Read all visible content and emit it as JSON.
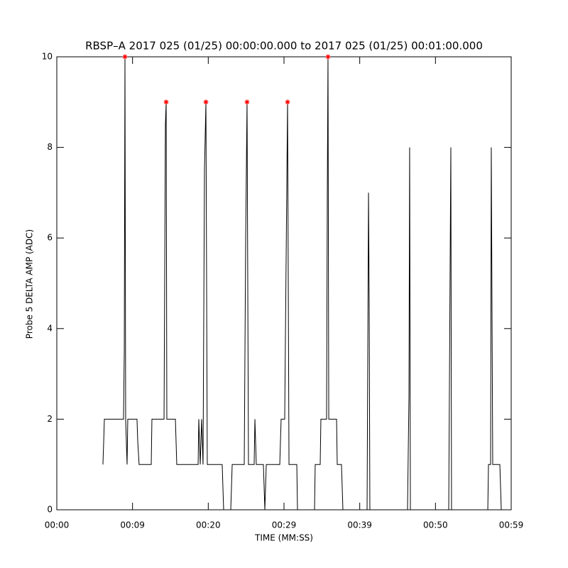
{
  "chart_data": {
    "type": "line",
    "title": "RBSP–A 2017 025 (01/25) 00:00:00.000 to 2017 025 (01/25) 00:01:00.000",
    "xlabel": "TIME (MM:SS)",
    "ylabel": "Probe 5 DELTA AMP (ADC)",
    "xlim": [
      0,
      60
    ],
    "xticks": [
      {
        "value": 0,
        "label": "00:00"
      },
      {
        "value": 10,
        "label": "00:09"
      },
      {
        "value": 20,
        "label": "00:20"
      },
      {
        "value": 30,
        "label": "00:29"
      },
      {
        "value": 40,
        "label": "00:39"
      },
      {
        "value": 50,
        "label": "00:50"
      },
      {
        "value": 60,
        "label": "00:59"
      }
    ],
    "ylim": [
      0,
      10
    ],
    "yticks": [
      0,
      2,
      4,
      6,
      8,
      10
    ],
    "series": [
      {
        "color": "#000000",
        "x": [
          6.09,
          6.19,
          6.28,
          8.81,
          8.91,
          9.0,
          9.09,
          9.28,
          9.37,
          10.59,
          10.69,
          10.87,
          12.47,
          12.56,
          14.16,
          14.34,
          14.44,
          14.53,
          15.66,
          15.84,
          18.66,
          18.75,
          18.94,
          19.12,
          19.31,
          19.5,
          19.69,
          19.87,
          21.84,
          22.03,
          22.97,
          23.16,
          24.75,
          24.94,
          25.12,
          25.31,
          26.06,
          26.16,
          26.34,
          27.28,
          27.47,
          27.66,
          29.44,
          29.62,
          30.09,
          30.28,
          30.47,
          30.66,
          31.69,
          31.78,
          34.03,
          34.12,
          34.78,
          34.87,
          35.62,
          35.72,
          35.81,
          35.91,
          36.94,
          37.03,
          37.59,
          37.78,
          40.97,
          41.16,
          41.25,
          41.34,
          46.31,
          46.5,
          46.59,
          46.69,
          51.75,
          51.94,
          52.03,
          52.12,
          56.91,
          57.0,
          57.28,
          57.37,
          57.56,
          58.5,
          58.69
        ],
        "values": [
          1,
          1.5,
          2,
          2,
          3.5,
          10,
          2,
          1,
          2,
          2,
          1.5,
          1,
          1,
          2,
          2,
          8.5,
          9,
          2,
          2,
          1,
          1,
          2,
          1,
          2,
          1,
          7.5,
          9,
          1,
          1,
          0,
          0,
          1,
          1,
          6,
          9,
          1,
          1,
          2,
          1,
          1,
          0,
          1,
          1,
          2,
          2,
          5.5,
          9,
          1,
          1,
          0,
          0,
          1,
          1,
          2,
          2,
          7,
          10,
          2,
          2,
          1,
          1,
          0,
          0,
          7,
          4.5,
          0,
          0,
          2.5,
          8,
          0,
          0,
          5.5,
          8,
          0,
          0,
          1,
          1,
          8,
          1,
          1,
          0
        ]
      }
    ],
    "markers": {
      "color": "#ff0000",
      "x": [
        9.0,
        14.44,
        19.69,
        25.12,
        30.47,
        35.81
      ],
      "values": [
        10,
        9,
        9,
        9,
        9,
        10
      ]
    }
  }
}
